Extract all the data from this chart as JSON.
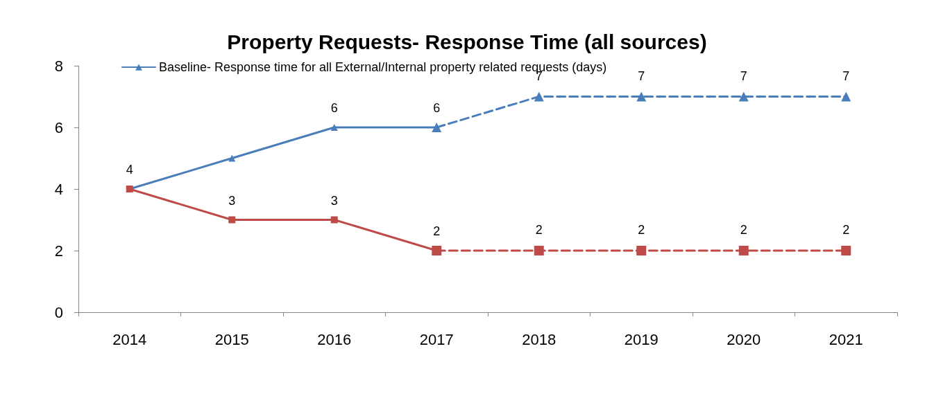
{
  "chart_data": {
    "type": "line",
    "title": "Property Requests- Response Time (all sources)",
    "categories": [
      "2014",
      "2015",
      "2016",
      "2017",
      "2018",
      "2019",
      "2020",
      "2021"
    ],
    "series": [
      {
        "name": "Baseline- Response time for all External/Internal property related requests (days)",
        "color": "#4a7ebb",
        "marker": "triangle",
        "line_style": "solid",
        "values": [
          4,
          5,
          6,
          6,
          null,
          null,
          null,
          null
        ],
        "value_labels": [
          "4",
          null,
          "6",
          "6",
          null,
          null,
          null,
          null
        ]
      },
      {
        "color": "#4a7ebb",
        "marker": "triangle",
        "line_style": "dashed",
        "values": [
          null,
          null,
          null,
          6,
          7,
          7,
          7,
          7
        ],
        "value_labels": [
          null,
          null,
          null,
          null,
          "7",
          "7",
          "7",
          "7"
        ]
      },
      {
        "color": "#be4b48",
        "marker": "square",
        "line_style": "solid",
        "values": [
          4,
          3,
          3,
          2,
          null,
          null,
          null,
          null
        ],
        "value_labels": [
          null,
          "3",
          "3",
          "2",
          null,
          null,
          null,
          null
        ]
      },
      {
        "color": "#be4b48",
        "marker": "square",
        "line_style": "dashed",
        "values": [
          null,
          null,
          null,
          2,
          2,
          2,
          2,
          2
        ],
        "value_labels": [
          null,
          null,
          null,
          null,
          "2",
          "2",
          "2",
          "2"
        ]
      }
    ],
    "ylim": [
      0,
      8
    ],
    "yticks": [
      0,
      2,
      4,
      6,
      8
    ],
    "grid": false,
    "legend": "top left"
  }
}
